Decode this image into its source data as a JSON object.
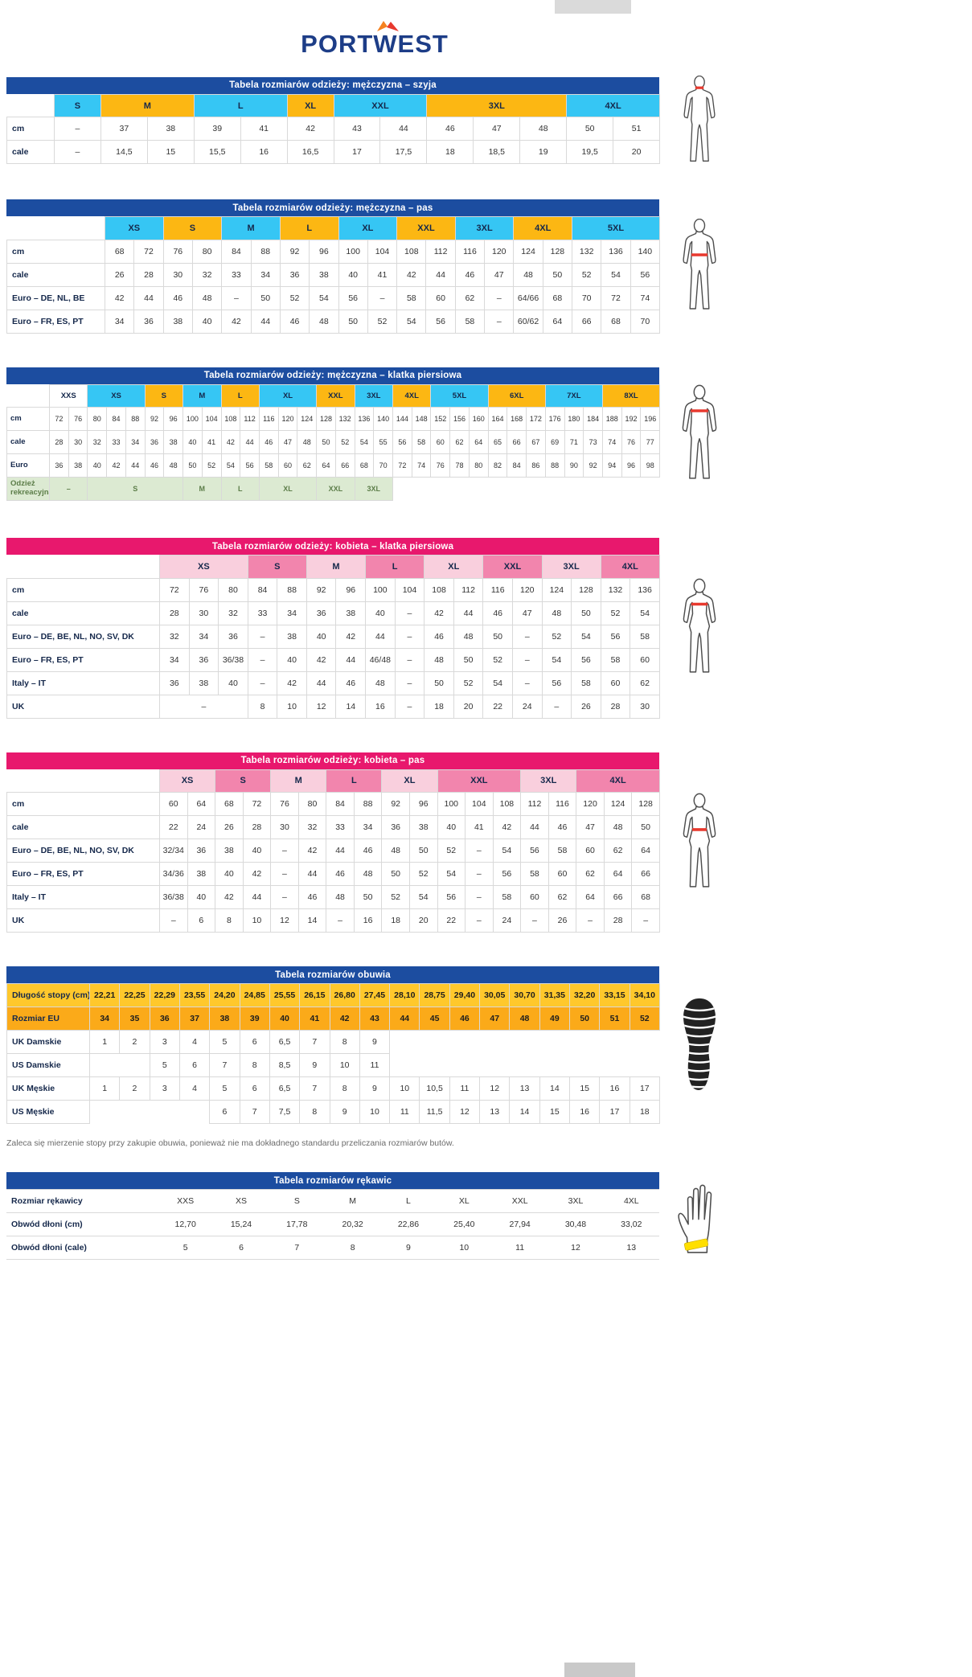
{
  "logo": {
    "text": "PORTWEST"
  },
  "palette": {
    "navy": "#1c4da0",
    "pink": "#e8186d",
    "cyan": "#36c6f4",
    "orange": "#fcb713",
    "lightpink": "#f9cfdd",
    "darkpink": "#f285ad",
    "green": "#dcead2",
    "yellow": "#ffc82c",
    "amber": "#fbaa19",
    "white": "#ffffff",
    "band_red": "#e8392e",
    "glove_band": "#ffdf00"
  },
  "shoe_note": "Zaleca się mierzenie stopy przy zakupie obuwia, ponieważ nie ma dokładnego standardu przeliczania rozmiarów butów.",
  "tables": [
    {
      "title": "Tabela rozmiarów odzieży: mężczyzna – szyja",
      "theme": "navy",
      "label_w": 59,
      "cols": 13,
      "sizes": [
        [
          "S",
          1,
          "cyan"
        ],
        [
          "M",
          2,
          "orange"
        ],
        [
          "L",
          2,
          "cyan"
        ],
        [
          "XL",
          1,
          "orange"
        ],
        [
          "XXL",
          2,
          "cyan"
        ],
        [
          "3XL",
          3,
          "orange"
        ],
        [
          "4XL",
          2,
          "cyan"
        ]
      ],
      "rows": [
        {
          "label": "cm",
          "cells": [
            "–",
            "37",
            "38",
            "39",
            "41",
            "42",
            "43",
            "44",
            "46",
            "47",
            "48",
            "50",
            "51"
          ]
        },
        {
          "label": "cale",
          "cells": [
            "–",
            "14,5",
            "15",
            "15,5",
            "16",
            "16,5",
            "17",
            "17,5",
            "18",
            "18,5",
            "19",
            "19,5",
            "20"
          ]
        }
      ]
    },
    {
      "title": "Tabela rozmiarów odzieży: mężczyzna – pas",
      "theme": "navy",
      "label_w": 122,
      "cols": 19,
      "sizes": [
        [
          "XS",
          2,
          "cyan"
        ],
        [
          "S",
          2,
          "orange"
        ],
        [
          "M",
          2,
          "cyan"
        ],
        [
          "L",
          2,
          "orange"
        ],
        [
          "XL",
          2,
          "cyan"
        ],
        [
          "XXL",
          2,
          "orange"
        ],
        [
          "3XL",
          2,
          "cyan"
        ],
        [
          "4XL",
          2,
          "orange"
        ],
        [
          "5XL",
          3,
          "cyan"
        ]
      ],
      "rows": [
        {
          "label": "cm",
          "cells": [
            "68",
            "72",
            "76",
            "80",
            "84",
            "88",
            "92",
            "96",
            "100",
            "104",
            "108",
            "112",
            "116",
            "120",
            "124",
            "128",
            "132",
            "136",
            "140"
          ]
        },
        {
          "label": "cale",
          "cells": [
            "26",
            "28",
            "30",
            "32",
            "33",
            "34",
            "36",
            "38",
            "40",
            "41",
            "42",
            "44",
            "46",
            "47",
            "48",
            "50",
            "52",
            "54",
            "56"
          ]
        },
        {
          "label": "Euro – DE, NL, BE",
          "cells": [
            "42",
            "44",
            "46",
            "48",
            "–",
            "50",
            "52",
            "54",
            "56",
            "–",
            "58",
            "60",
            "62",
            "–",
            "64/66",
            "68",
            "70",
            "72",
            "74"
          ]
        },
        {
          "label": "Euro – FR, ES, PT",
          "cells": [
            "34",
            "36",
            "38",
            "40",
            "42",
            "44",
            "46",
            "48",
            "50",
            "52",
            "54",
            "56",
            "58",
            "–",
            "60/62",
            "64",
            "66",
            "68",
            "70"
          ]
        }
      ]
    },
    {
      "title": "Tabela rozmiarów odzieży: mężczyzna – klatka piersiowa",
      "theme": "navy",
      "label_w": 53,
      "cols": 32,
      "dense": true,
      "sizes": [
        [
          "XXS",
          2,
          "white"
        ],
        [
          "XS",
          3,
          "cyan"
        ],
        [
          "S",
          2,
          "orange"
        ],
        [
          "M",
          2,
          "cyan"
        ],
        [
          "L",
          2,
          "orange"
        ],
        [
          "XL",
          3,
          "cyan"
        ],
        [
          "XXL",
          2,
          "orange"
        ],
        [
          "3XL",
          2,
          "cyan"
        ],
        [
          "4XL",
          2,
          "orange"
        ],
        [
          "5XL",
          3,
          "cyan"
        ],
        [
          "6XL",
          3,
          "orange"
        ],
        [
          "7XL",
          3,
          "cyan"
        ],
        [
          "8XL",
          3,
          "orange"
        ]
      ],
      "rows": [
        {
          "label": "cm",
          "cells": [
            "72",
            "76",
            "80",
            "84",
            "88",
            "92",
            "96",
            "100",
            "104",
            "108",
            "112",
            "116",
            "120",
            "124",
            "128",
            "132",
            "136",
            "140",
            "144",
            "148",
            "152",
            "156",
            "160",
            "164",
            "168",
            "172",
            "176",
            "180",
            "184",
            "188",
            "192",
            "196"
          ]
        },
        {
          "label": "cale",
          "cells": [
            "28",
            "30",
            "32",
            "33",
            "34",
            "36",
            "38",
            "40",
            "41",
            "42",
            "44",
            "46",
            "47",
            "48",
            "50",
            "52",
            "54",
            "55",
            "56",
            "58",
            "60",
            "62",
            "64",
            "65",
            "66",
            "67",
            "69",
            "71",
            "73",
            "74",
            "76",
            "77"
          ]
        },
        {
          "label": "Euro",
          "cells": [
            "36",
            "38",
            "40",
            "42",
            "44",
            "46",
            "48",
            "50",
            "52",
            "54",
            "56",
            "58",
            "60",
            "62",
            "64",
            "66",
            "68",
            "70",
            "72",
            "74",
            "76",
            "78",
            "80",
            "82",
            "84",
            "86",
            "88",
            "90",
            "92",
            "94",
            "96",
            "98"
          ]
        },
        {
          "label": "Odzież rekreacyjna",
          "label_color": "green",
          "cells": [
            [
              "–",
              2,
              "green"
            ],
            [
              "S",
              5,
              "green"
            ],
            [
              "M",
              2,
              "green"
            ],
            [
              "L",
              2,
              "green"
            ],
            [
              "XL",
              3,
              "green"
            ],
            [
              "XXL",
              2,
              "green"
            ],
            [
              "3XL",
              2,
              "green"
            ],
            [
              "",
              14,
              "white"
            ]
          ]
        }
      ]
    },
    {
      "title": "Tabela rozmiarów odzieży: kobieta – klatka piersiowa",
      "theme": "pink",
      "label_w": 190,
      "cols": 17,
      "sizes": [
        [
          "XS",
          3,
          "lightpink"
        ],
        [
          "S",
          2,
          "darkpink"
        ],
        [
          "M",
          2,
          "lightpink"
        ],
        [
          "L",
          2,
          "darkpink"
        ],
        [
          "XL",
          2,
          "lightpink"
        ],
        [
          "XXL",
          2,
          "darkpink"
        ],
        [
          "3XL",
          2,
          "lightpink"
        ],
        [
          "4XL",
          2,
          "darkpink"
        ]
      ],
      "rows": [
        {
          "label": "cm",
          "cells": [
            "72",
            "76",
            "80",
            "84",
            "88",
            "92",
            "96",
            "100",
            "104",
            "108",
            "112",
            "116",
            "120",
            "124",
            "128",
            "132",
            "136"
          ]
        },
        {
          "label": "cale",
          "cells": [
            "28",
            "30",
            "32",
            "33",
            "34",
            "36",
            "38",
            "40",
            "–",
            "42",
            "44",
            "46",
            "47",
            "48",
            "50",
            "52",
            "54"
          ]
        },
        {
          "label": "Euro – DE, BE, NL, NO, SV, DK",
          "cells": [
            "32",
            "34",
            "36",
            "–",
            "38",
            "40",
            "42",
            "44",
            "–",
            "46",
            "48",
            "50",
            "–",
            "52",
            "54",
            "56",
            "58"
          ]
        },
        {
          "label": "Euro – FR, ES, PT",
          "cells": [
            "34",
            "36",
            "36/38",
            "–",
            "40",
            "42",
            "44",
            "46/48",
            "–",
            "48",
            "50",
            "52",
            "–",
            "54",
            "56",
            "58",
            "60"
          ]
        },
        {
          "label": "Italy – IT",
          "cells": [
            "36",
            "38",
            "40",
            "–",
            "42",
            "44",
            "46",
            "48",
            "–",
            "50",
            "52",
            "54",
            "–",
            "56",
            "58",
            "60",
            "62"
          ]
        },
        {
          "label": "UK",
          "cells": [
            [
              "–",
              3,
              null
            ],
            "8",
            "10",
            "12",
            "14",
            "16",
            "–",
            "18",
            "20",
            "22",
            "24",
            "–",
            "26",
            "28",
            "30"
          ]
        }
      ]
    },
    {
      "title": "Tabela rozmiarów odzieży: kobieta – pas",
      "theme": "pink",
      "label_w": 190,
      "cols": 18,
      "sizes": [
        [
          "XS",
          2,
          "lightpink"
        ],
        [
          "S",
          2,
          "darkpink"
        ],
        [
          "M",
          2,
          "lightpink"
        ],
        [
          "L",
          2,
          "darkpink"
        ],
        [
          "XL",
          2,
          "lightpink"
        ],
        [
          "XXL",
          3,
          "darkpink"
        ],
        [
          "3XL",
          2,
          "lightpink"
        ],
        [
          "4XL",
          3,
          "darkpink"
        ]
      ],
      "rows": [
        {
          "label": "cm",
          "cells": [
            "60",
            "64",
            "68",
            "72",
            "76",
            "80",
            "84",
            "88",
            "92",
            "96",
            "100",
            "104",
            "108",
            "112",
            "116",
            "120",
            "124",
            "128"
          ]
        },
        {
          "label": "cale",
          "cells": [
            "22",
            "24",
            "26",
            "28",
            "30",
            "32",
            "33",
            "34",
            "36",
            "38",
            "40",
            "41",
            "42",
            "44",
            "46",
            "47",
            "48",
            "50"
          ]
        },
        {
          "label": "Euro – DE, BE, NL, NO, SV, DK",
          "cells": [
            "32/34",
            "36",
            "38",
            "40",
            "–",
            "42",
            "44",
            "46",
            "48",
            "50",
            "52",
            "–",
            "54",
            "56",
            "58",
            "60",
            "62",
            "64"
          ]
        },
        {
          "label": "Euro – FR, ES, PT",
          "cells": [
            "34/36",
            "38",
            "40",
            "42",
            "–",
            "44",
            "46",
            "48",
            "50",
            "52",
            "54",
            "–",
            "56",
            "58",
            "60",
            "62",
            "64",
            "66"
          ]
        },
        {
          "label": "Italy – IT",
          "cells": [
            "36/38",
            "40",
            "42",
            "44",
            "–",
            "46",
            "48",
            "50",
            "52",
            "54",
            "56",
            "–",
            "58",
            "60",
            "62",
            "64",
            "66",
            "68"
          ]
        },
        {
          "label": "UK",
          "cells": [
            "–",
            "6",
            "8",
            "10",
            "12",
            "14",
            "–",
            "16",
            "18",
            "20",
            "22",
            "–",
            "24",
            "–",
            "26",
            "–",
            "28",
            "–"
          ]
        }
      ]
    },
    {
      "title": "Tabela rozmiarów obuwia",
      "theme": "navy",
      "label_w": 103,
      "cols": 19,
      "rows": [
        {
          "label": "Długość stopy (cm)",
          "row_color": "yellow",
          "cells": [
            "22,21",
            "22,25",
            "22,29",
            "23,55",
            "24,20",
            "24,85",
            "25,55",
            "26,15",
            "26,80",
            "27,45",
            "28,10",
            "28,75",
            "29,40",
            "30,05",
            "30,70",
            "31,35",
            "32,20",
            "33,15",
            "34,10"
          ]
        },
        {
          "label": "Rozmiar EU",
          "row_color": "amber",
          "cells": [
            "34",
            "35",
            "36",
            "37",
            "38",
            "39",
            "40",
            "41",
            "42",
            "43",
            "44",
            "45",
            "46",
            "47",
            "48",
            "49",
            "50",
            "51",
            "52"
          ]
        },
        {
          "label": "UK Damskie",
          "cells": [
            "1",
            "2",
            "3",
            "4",
            "5",
            "6",
            "6,5",
            "7",
            "8",
            "9",
            [
              "",
              9,
              null
            ]
          ]
        },
        {
          "label": "US Damskie",
          "cells": [
            [
              "",
              2,
              null
            ],
            "5",
            "6",
            "7",
            "8",
            "8,5",
            "9",
            "10",
            "11",
            [
              "",
              9,
              null
            ]
          ]
        },
        {
          "label": "UK Męskie",
          "cells": [
            "1",
            "2",
            "3",
            "4",
            "5",
            "6",
            "6,5",
            "7",
            "8",
            "9",
            "10",
            "10,5",
            "11",
            "12",
            "13",
            "14",
            "15",
            "16",
            "17"
          ]
        },
        {
          "label": "US Męskie",
          "cells": [
            [
              "",
              4,
              null
            ],
            "6",
            "7",
            "7,5",
            "8",
            "9",
            "10",
            "11",
            "11,5",
            "12",
            "13",
            "14",
            "15",
            "16",
            "17",
            "18"
          ]
        }
      ]
    },
    {
      "title": "Tabela rozmiarów rękawic",
      "theme": "navy",
      "label_w": 188,
      "cols": 9,
      "open": true,
      "rows": [
        {
          "label": "Rozmiar rękawicy",
          "cells": [
            "XXS",
            "XS",
            "S",
            "M",
            "L",
            "XL",
            "XXL",
            "3XL",
            "4XL"
          ]
        },
        {
          "label": "Obwód dłoni (cm)",
          "cells": [
            "12,70",
            "15,24",
            "17,78",
            "20,32",
            "22,86",
            "25,40",
            "27,94",
            "30,48",
            "33,02"
          ]
        },
        {
          "label": "Obwód dłoni (cale)",
          "cells": [
            "5",
            "6",
            "7",
            "8",
            "9",
            "10",
            "11",
            "12",
            "13"
          ]
        }
      ]
    }
  ]
}
